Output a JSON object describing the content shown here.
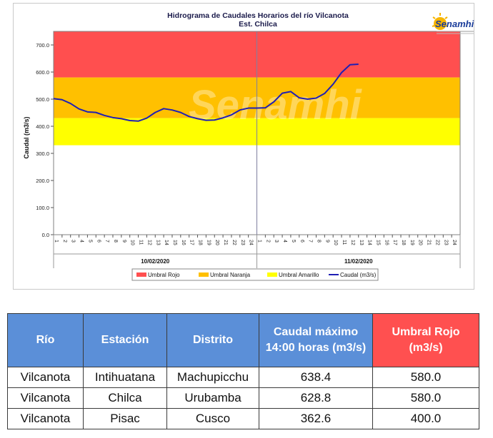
{
  "chart_data": {
    "type": "line",
    "title": "Hidrograma de Caudales Horarios del río Vilcanota",
    "subtitle": "Est. Chilca",
    "ylabel": "Caudal (m3/s)",
    "ylim": [
      0,
      750
    ],
    "yticks": [
      "0.0",
      "100.0",
      "200.0",
      "300.0",
      "400.0",
      "500.0",
      "600.0",
      "700.0"
    ],
    "grid": false,
    "x_hours": [
      "1",
      "2",
      "3",
      "4",
      "5",
      "6",
      "7",
      "8",
      "9",
      "10",
      "11",
      "12",
      "13",
      "14",
      "15",
      "16",
      "17",
      "18",
      "19",
      "20",
      "21",
      "22",
      "23",
      "24",
      "1",
      "2",
      "3",
      "4",
      "5",
      "6",
      "7",
      "8",
      "9",
      "10",
      "11",
      "12",
      "13",
      "14",
      "15",
      "16",
      "17",
      "18",
      "19",
      "20",
      "21",
      "22",
      "23",
      "24"
    ],
    "date_labels": [
      "10/02/2020",
      "11/02/2020"
    ],
    "bands": [
      {
        "name": "Umbral Rojo",
        "from": 580,
        "to": 750,
        "color": "#ff4f4f"
      },
      {
        "name": "Umbral Naranja",
        "from": 430,
        "to": 580,
        "color": "#ffc000"
      },
      {
        "name": "Umbral Amarillo",
        "from": 330,
        "to": 430,
        "color": "#ffff00"
      }
    ],
    "series": [
      {
        "name": "Caudal (m3/s)",
        "color": "#1f1fb4",
        "values": [
          502,
          498,
          484,
          464,
          453,
          451,
          440,
          432,
          428,
          421,
          419,
          430,
          451,
          465,
          460,
          451,
          436,
          428,
          422,
          423,
          431,
          442,
          460,
          467,
          467,
          468,
          490,
          522,
          528,
          505,
          500,
          504,
          521,
          555,
          598,
          627,
          629
        ]
      }
    ],
    "legend_position": "bottom"
  },
  "logo": {
    "text": "Senamhi",
    "watermark": "Senamhi"
  },
  "table": {
    "headers": [
      "Río",
      "Estación",
      "Distrito",
      "Caudal máximo 14:00 horas (m3/s)",
      "Umbral Rojo (m3/s)"
    ],
    "rows": [
      [
        "Vilcanota",
        "Intihuatana",
        "Machupicchu",
        "638.4",
        "580.0"
      ],
      [
        "Vilcanota",
        "Chilca",
        "Urubamba",
        "628.8",
        "580.0"
      ],
      [
        "Vilcanota",
        "Pisac",
        "Cusco",
        "362.6",
        "400.0"
      ]
    ]
  },
  "colors": {
    "header_blue": "#5b8fd8",
    "header_red": "#ff5050"
  }
}
